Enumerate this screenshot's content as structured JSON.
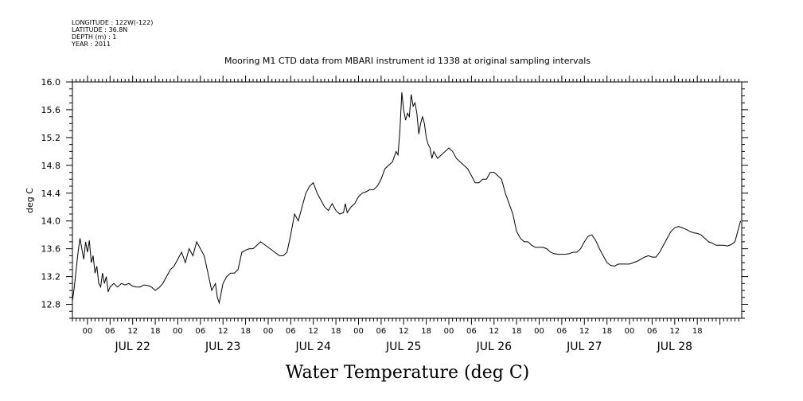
{
  "header": {
    "longitude": "LONGITUDE : 122W(-122)",
    "latitude": "LATITUDE : 36.8N",
    "depth": "DEPTH (m) : 1",
    "year": "YEAR : 2011"
  },
  "chart_data": {
    "type": "line",
    "title": "Mooring M1 CTD data from MBARI instrument id 1338 at original sampling intervals",
    "xlabel": "Water Temperature (deg C)",
    "ylabel": "deg C",
    "ylim": [
      12.6,
      16.0
    ],
    "yticks": [
      "12.8",
      "13.2",
      "13.6",
      "14.0",
      "14.4",
      "14.8",
      "15.2",
      "15.6",
      "16.0"
    ],
    "hour_labels": [
      "00",
      "06",
      "12",
      "18",
      "00",
      "06",
      "12",
      "18",
      "00",
      "06",
      "12",
      "18",
      "00",
      "06",
      "12",
      "18",
      "00",
      "06",
      "12",
      "18",
      "00",
      "06",
      "12",
      "18",
      "00",
      "06",
      "12",
      "18"
    ],
    "day_labels": [
      "JUL 22",
      "JUL 23",
      "JUL 24",
      "JUL 25",
      "JUL 26",
      "JUL 27",
      "JUL 28"
    ],
    "x_unit": "hours since 2011-07-21 20:00",
    "xlim": [
      0,
      173
    ],
    "grid": false,
    "series": [
      {
        "points": [
          [
            0.0,
            12.85
          ],
          [
            0.5,
            13.05
          ],
          [
            1.0,
            13.3
          ],
          [
            1.5,
            13.55
          ],
          [
            2.0,
            13.75
          ],
          [
            2.5,
            13.6
          ],
          [
            3.0,
            13.45
          ],
          [
            3.5,
            13.7
          ],
          [
            4.0,
            13.55
          ],
          [
            4.5,
            13.72
          ],
          [
            5.0,
            13.4
          ],
          [
            5.5,
            13.5
          ],
          [
            6.0,
            13.25
          ],
          [
            6.5,
            13.35
          ],
          [
            7.0,
            13.1
          ],
          [
            7.5,
            13.05
          ],
          [
            8.0,
            13.25
          ],
          [
            8.5,
            13.1
          ],
          [
            9.0,
            13.2
          ],
          [
            9.5,
            12.98
          ],
          [
            10,
            13.05
          ],
          [
            11,
            13.1
          ],
          [
            12,
            13.05
          ],
          [
            13,
            13.1
          ],
          [
            14,
            13.08
          ],
          [
            15,
            13.1
          ],
          [
            16,
            13.06
          ],
          [
            17,
            13.05
          ],
          [
            18,
            13.05
          ],
          [
            19,
            13.08
          ],
          [
            20,
            13.07
          ],
          [
            21,
            13.05
          ],
          [
            22,
            13.0
          ],
          [
            23,
            13.04
          ],
          [
            24,
            13.1
          ],
          [
            25,
            13.2
          ],
          [
            26,
            13.3
          ],
          [
            27,
            13.35
          ],
          [
            28,
            13.45
          ],
          [
            29,
            13.55
          ],
          [
            30,
            13.4
          ],
          [
            31,
            13.6
          ],
          [
            32,
            13.5
          ],
          [
            33,
            13.7
          ],
          [
            34,
            13.6
          ],
          [
            35,
            13.5
          ],
          [
            36,
            13.25
          ],
          [
            37,
            13.0
          ],
          [
            38,
            13.1
          ],
          [
            38.5,
            12.9
          ],
          [
            39,
            12.82
          ],
          [
            40,
            13.1
          ],
          [
            41,
            13.2
          ],
          [
            42,
            13.25
          ],
          [
            43,
            13.25
          ],
          [
            44,
            13.3
          ],
          [
            45,
            13.55
          ],
          [
            46,
            13.58
          ],
          [
            47,
            13.6
          ],
          [
            48,
            13.6
          ],
          [
            49,
            13.65
          ],
          [
            50,
            13.7
          ],
          [
            51,
            13.66
          ],
          [
            52,
            13.62
          ],
          [
            53,
            13.58
          ],
          [
            54,
            13.54
          ],
          [
            55,
            13.5
          ],
          [
            56,
            13.5
          ],
          [
            57,
            13.55
          ],
          [
            58,
            13.8
          ],
          [
            59,
            14.1
          ],
          [
            60,
            14.0
          ],
          [
            61,
            14.2
          ],
          [
            62,
            14.4
          ],
          [
            63,
            14.5
          ],
          [
            64,
            14.55
          ],
          [
            65,
            14.4
          ],
          [
            66,
            14.3
          ],
          [
            67,
            14.2
          ],
          [
            68,
            14.15
          ],
          [
            69,
            14.25
          ],
          [
            70,
            14.15
          ],
          [
            71,
            14.1
          ],
          [
            72,
            14.12
          ],
          [
            72.5,
            14.25
          ],
          [
            73,
            14.12
          ],
          [
            74,
            14.2
          ],
          [
            75,
            14.25
          ],
          [
            76,
            14.35
          ],
          [
            77,
            14.4
          ],
          [
            78,
            14.42
          ],
          [
            79,
            14.45
          ],
          [
            80,
            14.45
          ],
          [
            81,
            14.5
          ],
          [
            82,
            14.6
          ],
          [
            83,
            14.75
          ],
          [
            84,
            14.8
          ],
          [
            85,
            14.85
          ],
          [
            86,
            15.0
          ],
          [
            86.5,
            14.95
          ],
          [
            87,
            15.3
          ],
          [
            87.5,
            15.85
          ],
          [
            88,
            15.6
          ],
          [
            88.5,
            15.45
          ],
          [
            89,
            15.55
          ],
          [
            89.5,
            15.5
          ],
          [
            90,
            15.82
          ],
          [
            90.5,
            15.65
          ],
          [
            91,
            15.7
          ],
          [
            91.5,
            15.55
          ],
          [
            92,
            15.25
          ],
          [
            92.5,
            15.4
          ],
          [
            93,
            15.5
          ],
          [
            93.5,
            15.4
          ],
          [
            94,
            15.2
          ],
          [
            94.5,
            15.1
          ],
          [
            95,
            15.05
          ],
          [
            95.5,
            14.9
          ],
          [
            96,
            15.0
          ],
          [
            97,
            14.9
          ],
          [
            98,
            14.95
          ],
          [
            99,
            15.0
          ],
          [
            100,
            15.05
          ],
          [
            101,
            15.0
          ],
          [
            102,
            14.9
          ],
          [
            103,
            14.85
          ],
          [
            104,
            14.8
          ],
          [
            105,
            14.75
          ],
          [
            106,
            14.65
          ],
          [
            107,
            14.55
          ],
          [
            108,
            14.55
          ],
          [
            109,
            14.6
          ],
          [
            110,
            14.6
          ],
          [
            111,
            14.7
          ],
          [
            112,
            14.7
          ],
          [
            113,
            14.65
          ],
          [
            114,
            14.6
          ],
          [
            115,
            14.4
          ],
          [
            116,
            14.25
          ],
          [
            117,
            14.1
          ],
          [
            118,
            13.85
          ],
          [
            119,
            13.75
          ],
          [
            120,
            13.7
          ],
          [
            121,
            13.7
          ],
          [
            122,
            13.65
          ],
          [
            123,
            13.62
          ],
          [
            124,
            13.62
          ],
          [
            125,
            13.62
          ],
          [
            126,
            13.6
          ],
          [
            127,
            13.55
          ],
          [
            128,
            13.53
          ],
          [
            129,
            13.52
          ],
          [
            130,
            13.52
          ],
          [
            131,
            13.52
          ],
          [
            132,
            13.53
          ],
          [
            133,
            13.55
          ],
          [
            134,
            13.55
          ],
          [
            135,
            13.6
          ],
          [
            136,
            13.7
          ],
          [
            137,
            13.78
          ],
          [
            138,
            13.8
          ],
          [
            139,
            13.72
          ],
          [
            140,
            13.6
          ],
          [
            141,
            13.5
          ],
          [
            142,
            13.4
          ],
          [
            143,
            13.36
          ],
          [
            144,
            13.35
          ],
          [
            145,
            13.38
          ],
          [
            146,
            13.38
          ],
          [
            147,
            13.38
          ],
          [
            148,
            13.38
          ],
          [
            149,
            13.4
          ],
          [
            150,
            13.42
          ],
          [
            151,
            13.45
          ],
          [
            152,
            13.48
          ],
          [
            153,
            13.5
          ],
          [
            154,
            13.48
          ],
          [
            155,
            13.48
          ],
          [
            156,
            13.55
          ],
          [
            157,
            13.65
          ],
          [
            158,
            13.75
          ],
          [
            159,
            13.85
          ],
          [
            160,
            13.9
          ],
          [
            161,
            13.92
          ],
          [
            162,
            13.9
          ],
          [
            163,
            13.88
          ],
          [
            164,
            13.85
          ],
          [
            165,
            13.83
          ],
          [
            166,
            13.82
          ],
          [
            167,
            13.8
          ],
          [
            168,
            13.75
          ],
          [
            169,
            13.7
          ],
          [
            170,
            13.68
          ],
          [
            171,
            13.65
          ],
          [
            172,
            13.65
          ],
          [
            173,
            13.65
          ],
          [
            174,
            13.64
          ],
          [
            175,
            13.66
          ],
          [
            176,
            13.7
          ],
          [
            176.5,
            13.8
          ],
          [
            177,
            13.9
          ],
          [
            177.5,
            14.0
          ]
        ]
      }
    ]
  }
}
